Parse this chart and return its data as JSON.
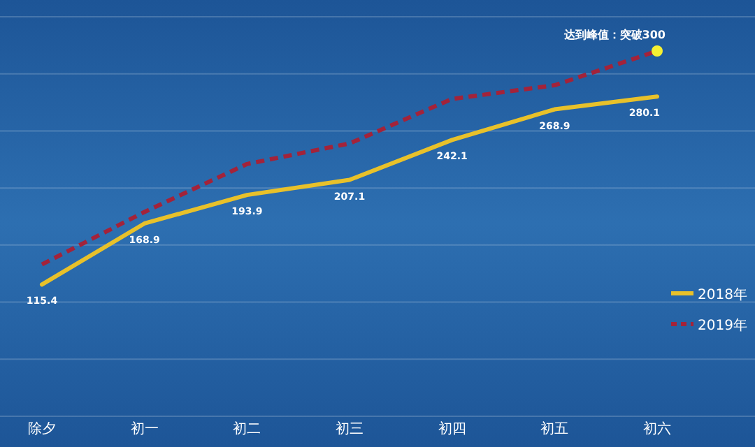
{
  "chart_data": {
    "type": "line",
    "categories": [
      "除夕",
      "初一",
      "初二",
      "初三",
      "初四",
      "初五",
      "初六"
    ],
    "series": [
      {
        "name": "2018年",
        "color": "#e8c12a",
        "line_style": "solid",
        "values": [
          115.4,
          168.9,
          193.9,
          207.1,
          242.1,
          268.9,
          280.1
        ],
        "value_labels": [
          "115.4",
          "168.9",
          "193.9",
          "207.1",
          "242.1",
          "268.9",
          "280.1"
        ]
      },
      {
        "name": "2019年",
        "color": "#a3233a",
        "line_style": "dashed",
        "values": [
          133,
          179,
          221,
          239,
          278,
          290,
          320
        ]
      }
    ],
    "annotations": [
      {
        "text": "达到峰值：突破300",
        "x": "初六",
        "y": 320
      }
    ],
    "ylim": [
      0,
      350
    ],
    "yticks": [
      {
        "value": 0,
        "label": null
      },
      {
        "value": 50,
        "label": null
      },
      {
        "value": 100,
        "label": null
      },
      {
        "value": 150,
        "label": null
      },
      {
        "value": 200,
        "label": null
      },
      {
        "value": 250,
        "label": null
      },
      {
        "value": 300,
        "label": null
      },
      {
        "value": 350,
        "label": null
      }
    ],
    "tick_labels": "x",
    "grid": "y",
    "legend": "right",
    "marker": "none"
  }
}
